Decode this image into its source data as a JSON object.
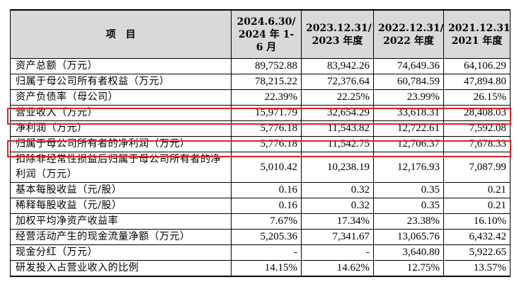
{
  "table": {
    "headers": [
      "项　目",
      "2024.6.30/ 2024 年 1-6 月",
      "2023.12.31/ 2023 年度",
      "2022.12.31/ 2022 年度",
      "2021.12.31/ 2021 年度"
    ],
    "rows": [
      {
        "label": "资产总额（万元）",
        "values": [
          "89,752.88",
          "83,942.26",
          "74,649.36",
          "64,106.29"
        ]
      },
      {
        "label": "归属于母公司所有者权益（万元）",
        "values": [
          "78,215.22",
          "72,376.64",
          "60,784.59",
          "47,894.80"
        ]
      },
      {
        "label": "资产负债率（母公司）",
        "values": [
          "22.39%",
          "22.25%",
          "23.99%",
          "26.15%"
        ]
      },
      {
        "label": "营业收入（万元）",
        "values": [
          "15,971.79",
          "32,654.29",
          "33,618.31",
          "28,408.03"
        ],
        "highlighted": true
      },
      {
        "label": "净利润（万元）",
        "values": [
          "5,776.18",
          "11,543.82",
          "12,722.61",
          "7,592.08"
        ]
      },
      {
        "label": "归属于母公司所有者的净利润（万元）",
        "values": [
          "5,776.18",
          "11,542.75",
          "12,706.37",
          "7,678.33"
        ],
        "highlighted": true
      },
      {
        "label": "扣除非经常性损益后归属于母公司所有者的净利润（万元）",
        "values": [
          "5,010.42",
          "10,238.19",
          "12,176.93",
          "7,087.99"
        ]
      },
      {
        "label": "基本每股收益（元/股）",
        "values": [
          "0.16",
          "0.32",
          "0.35",
          "0.21"
        ]
      },
      {
        "label": "稀释每股收益（元/股）",
        "values": [
          "0.16",
          "0.32",
          "0.35",
          "0.21"
        ]
      },
      {
        "label": "加权平均净资产收益率",
        "values": [
          "7.67%",
          "17.34%",
          "23.38%",
          "16.10%"
        ]
      },
      {
        "label": "经营活动产生的现金流量净额（万元）",
        "values": [
          "5,205.36",
          "7,341.67",
          "13,065.76",
          "6,432.42"
        ]
      },
      {
        "label": "现金分红（万元）",
        "values": [
          "-",
          "-",
          "3,640.80",
          "5,922.65"
        ]
      },
      {
        "label": "研发投入占营业收入的比例",
        "values": [
          "14.15%",
          "14.62%",
          "12.75%",
          "13.57%"
        ]
      }
    ]
  },
  "colors": {
    "header_background": "#d9d9d9",
    "highlight_border": "#e02020",
    "grid_lines": "#000000"
  }
}
